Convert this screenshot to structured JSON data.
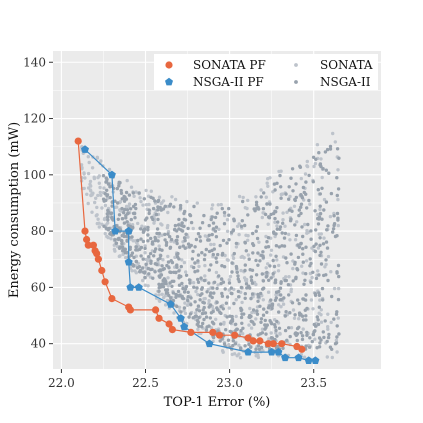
{
  "chart_data": {
    "type": "scatter",
    "xlabel": "TOP-1 Error (%)",
    "ylabel": "Energy consumption (mW)",
    "xlim": [
      21.95,
      23.9
    ],
    "ylim": [
      31,
      144
    ],
    "x_ticks": [
      22.0,
      22.5,
      23.0,
      23.5
    ],
    "y_ticks": [
      40,
      60,
      80,
      100,
      120,
      140
    ],
    "x_tick_labels": [
      "22.0",
      "22.5",
      "23.0",
      "23.5"
    ],
    "y_tick_labels": [
      "40",
      "60",
      "80",
      "100",
      "120",
      "140"
    ],
    "grid": true,
    "legend": {
      "placement": "top-right",
      "entries": [
        "SONATA PF",
        "NSGA-II PF",
        "SONATA",
        "NSGA-II"
      ]
    },
    "colors": {
      "sonata_pf": "#E8673F",
      "nsga_pf": "#3B8CC9",
      "sonata": "#BDC3CB",
      "nsga": "#98A2AD",
      "panel": "#EBEBEB",
      "grid": "#FFFFFF"
    },
    "series": [
      {
        "name": "SONATA PF",
        "marker": "circle",
        "connected": true,
        "x": [
          22.1,
          22.14,
          22.15,
          22.16,
          22.19,
          22.2,
          22.21,
          22.22,
          22.24,
          22.26,
          22.3,
          22.4,
          22.41,
          22.56,
          22.58,
          22.64,
          22.66,
          22.77,
          22.9,
          22.94,
          23.03,
          23.11,
          23.14,
          23.18,
          23.23,
          23.26,
          23.31,
          23.4,
          23.43
        ],
        "y": [
          112,
          80,
          77,
          75,
          75,
          73,
          72,
          70,
          66,
          62,
          56,
          53,
          52,
          52,
          49,
          47,
          45,
          44,
          44,
          43,
          43,
          42,
          41,
          41,
          40,
          40,
          40,
          39,
          38
        ]
      },
      {
        "name": "NSGA-II PF",
        "marker": "pentagon",
        "connected": true,
        "x": [
          22.14,
          22.3,
          22.32,
          22.4,
          22.4,
          22.41,
          22.46,
          22.65,
          22.71,
          22.73,
          22.88,
          23.11,
          23.25,
          23.29,
          23.33,
          23.41,
          23.47,
          23.51
        ],
        "y": [
          109,
          100,
          80,
          80,
          69,
          60,
          60,
          54,
          49,
          46,
          40,
          37,
          37,
          37,
          35,
          35,
          34,
          34
        ]
      },
      {
        "name": "SONATA",
        "marker": "dot",
        "connected": false,
        "point_count": 650,
        "x_range": [
          22.12,
          23.65
        ],
        "y_range": [
          35,
          133
        ]
      },
      {
        "name": "NSGA-II",
        "marker": "dot",
        "connected": false,
        "point_count": 950,
        "x_range": [
          22.25,
          23.65
        ],
        "y_range": [
          35,
          131
        ]
      }
    ]
  }
}
